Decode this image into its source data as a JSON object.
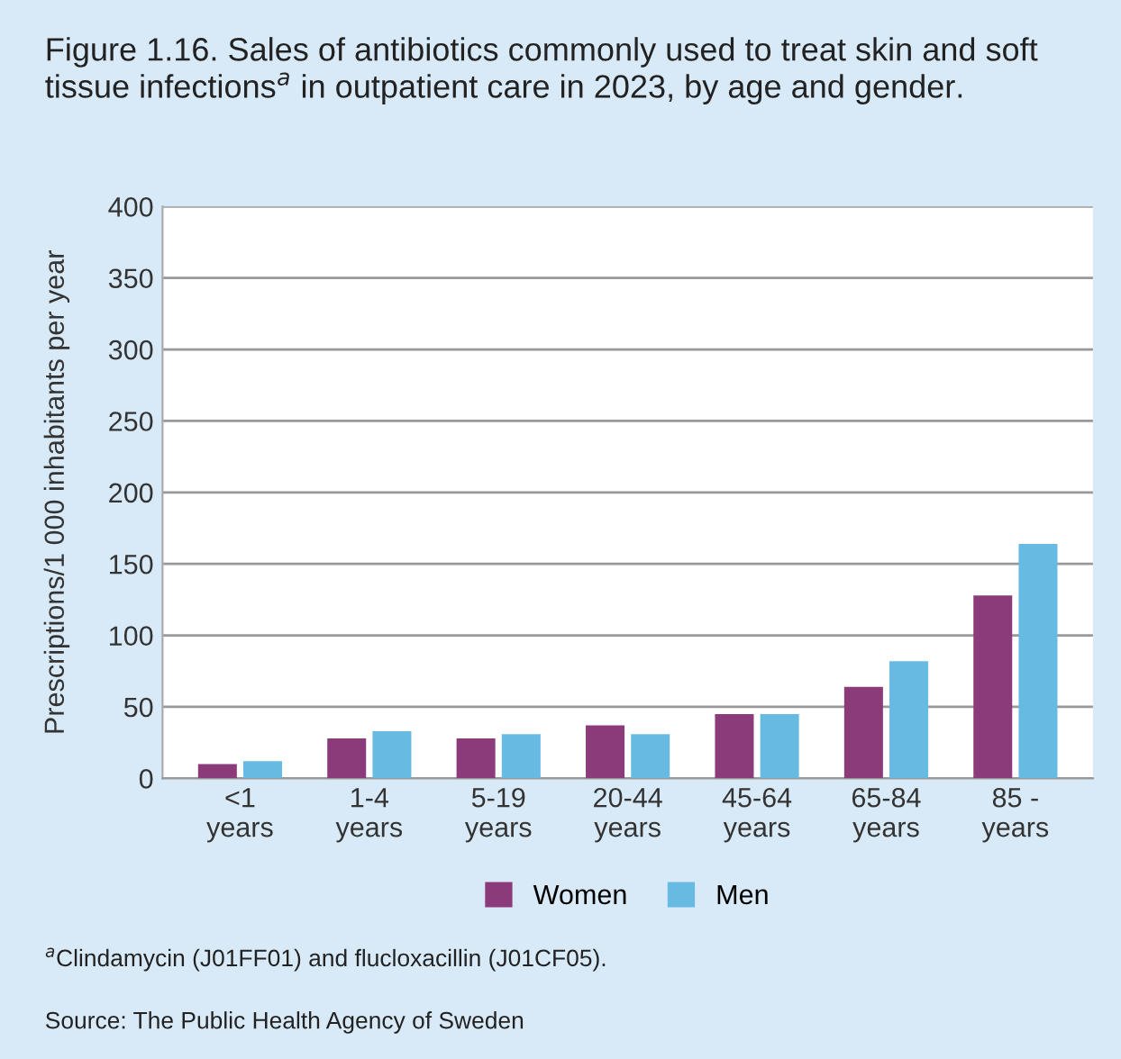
{
  "chart_data": {
    "type": "bar",
    "title": "Figure 1.16. Sales of antibiotics commonly used to treat skin and soft tissue infections$^{a}$ in outpatient care in 2023, by age and gender.",
    "ylabel": "Prescriptions/1 000 inhabitants per year",
    "categories": [
      "<1\nyears",
      "1-4\nyears",
      "5-19\nyears",
      "20-44\nyears",
      "45-64\nyears",
      "65-84\nyears",
      "85 -\nyears"
    ],
    "series": [
      {
        "name": "Women",
        "color": "#8b3b7a",
        "values": [
          10,
          28,
          28,
          37,
          45,
          64,
          128
        ]
      },
      {
        "name": "Men",
        "color": "#67bbe3",
        "values": [
          12,
          33,
          31,
          31,
          45,
          82,
          164
        ]
      }
    ],
    "ylim": [
      0,
      400
    ],
    "yticks": [
      0,
      50,
      100,
      150,
      200,
      250,
      300,
      350,
      400
    ],
    "grid": "y",
    "legend": "bottom",
    "annotations": [
      "$^{a}$Clindamycin (J01FF01) and flucloxacillin (J01CF05).",
      "Source: The Public Health Agency of Sweden"
    ]
  }
}
